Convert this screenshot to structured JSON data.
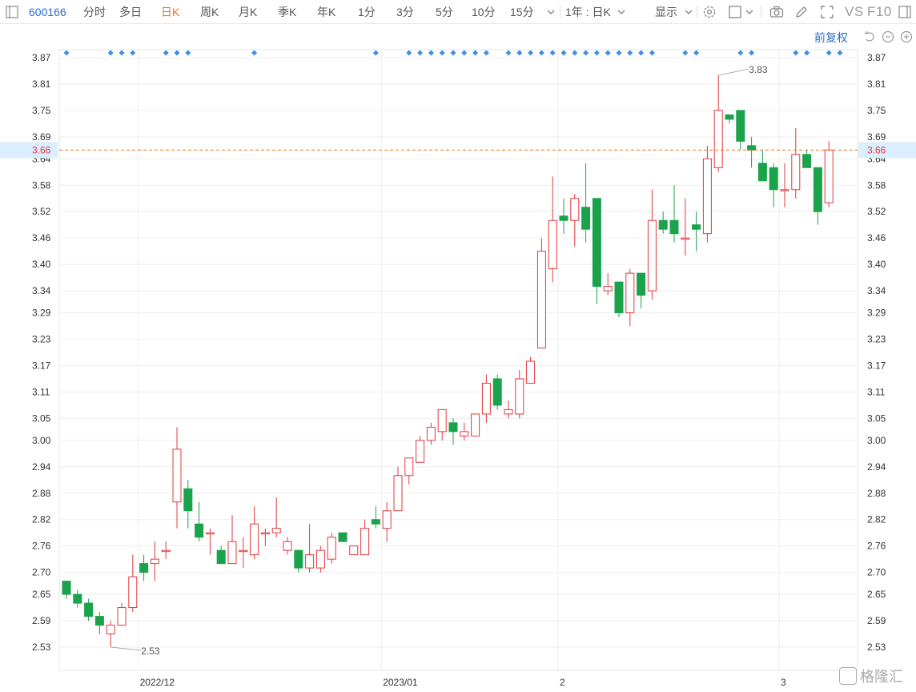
{
  "toolbar": {
    "code": "600166",
    "items": [
      "分时",
      "多日",
      "日K",
      "周K",
      "月K",
      "季K",
      "年K",
      "1分",
      "3分",
      "5分",
      "10分",
      "15分"
    ],
    "active": "日K",
    "period_select": "1年 : 日K",
    "display_label": "显示",
    "vs_label": "VS",
    "f10_label": "F10"
  },
  "subbar": {
    "adjust_label": "前复权"
  },
  "watermark": {
    "text": "格隆汇"
  },
  "colors": {
    "up": "#e0393e",
    "down": "#1aa34a",
    "marker": "#3f8fe8",
    "grid": "#eeeeee",
    "price_line": "#e8742a",
    "price_label": "#e0393e",
    "price_label_bg": "#dbeeff"
  },
  "chart_data": {
    "type": "candlestick",
    "y_ticks": [
      3.87,
      3.81,
      3.75,
      3.69,
      3.64,
      3.58,
      3.52,
      3.46,
      3.4,
      3.34,
      3.29,
      3.23,
      3.17,
      3.11,
      3.05,
      3.0,
      2.94,
      2.88,
      2.82,
      2.76,
      2.7,
      2.65,
      2.59,
      2.53
    ],
    "ylim": [
      2.53,
      3.87
    ],
    "current_price": 3.66,
    "x_labels": [
      {
        "label": "2022/12",
        "index": 7
      },
      {
        "label": "2023/01",
        "index": 29
      },
      {
        "label": "2",
        "index": 45
      },
      {
        "label": "3",
        "index": 65
      }
    ],
    "annotations": [
      {
        "text": "3.83",
        "index": 59,
        "value": 3.83
      },
      {
        "text": "2.53",
        "index": 4,
        "value": 2.53
      }
    ],
    "event_marker_indices": [
      0,
      4,
      5,
      6,
      9,
      10,
      11,
      17,
      28,
      31,
      32,
      33,
      34,
      35,
      36,
      37,
      38,
      40,
      41,
      42,
      43,
      44,
      45,
      46,
      47,
      48,
      49,
      50,
      51,
      52,
      53,
      56,
      57,
      61,
      62,
      66,
      67,
      69,
      70
    ],
    "candles": [
      {
        "o": 2.68,
        "h": 2.68,
        "l": 2.64,
        "c": 2.65
      },
      {
        "o": 2.65,
        "h": 2.66,
        "l": 2.62,
        "c": 2.63
      },
      {
        "o": 2.63,
        "h": 2.64,
        "l": 2.59,
        "c": 2.6
      },
      {
        "o": 2.6,
        "h": 2.61,
        "l": 2.56,
        "c": 2.58
      },
      {
        "o": 2.56,
        "h": 2.59,
        "l": 2.53,
        "c": 2.58
      },
      {
        "o": 2.58,
        "h": 2.63,
        "l": 2.58,
        "c": 2.62
      },
      {
        "o": 2.62,
        "h": 2.74,
        "l": 2.61,
        "c": 2.69
      },
      {
        "o": 2.72,
        "h": 2.74,
        "l": 2.68,
        "c": 2.7
      },
      {
        "o": 2.72,
        "h": 2.77,
        "l": 2.68,
        "c": 2.73
      },
      {
        "o": 2.75,
        "h": 2.77,
        "l": 2.73,
        "c": 2.75
      },
      {
        "o": 2.86,
        "h": 3.03,
        "l": 2.8,
        "c": 2.98
      },
      {
        "o": 2.89,
        "h": 2.91,
        "l": 2.8,
        "c": 2.84
      },
      {
        "o": 2.81,
        "h": 2.86,
        "l": 2.77,
        "c": 2.78
      },
      {
        "o": 2.79,
        "h": 2.8,
        "l": 2.74,
        "c": 2.79
      },
      {
        "o": 2.75,
        "h": 2.76,
        "l": 2.72,
        "c": 2.72
      },
      {
        "o": 2.72,
        "h": 2.83,
        "l": 2.72,
        "c": 2.77
      },
      {
        "o": 2.75,
        "h": 2.78,
        "l": 2.71,
        "c": 2.75
      },
      {
        "o": 2.74,
        "h": 2.85,
        "l": 2.73,
        "c": 2.81
      },
      {
        "o": 2.79,
        "h": 2.8,
        "l": 2.76,
        "c": 2.79
      },
      {
        "o": 2.79,
        "h": 2.87,
        "l": 2.78,
        "c": 2.8
      },
      {
        "o": 2.75,
        "h": 2.78,
        "l": 2.74,
        "c": 2.77
      },
      {
        "o": 2.75,
        "h": 2.75,
        "l": 2.7,
        "c": 2.71
      },
      {
        "o": 2.71,
        "h": 2.81,
        "l": 2.7,
        "c": 2.74
      },
      {
        "o": 2.71,
        "h": 2.76,
        "l": 2.7,
        "c": 2.75
      },
      {
        "o": 2.73,
        "h": 2.79,
        "l": 2.72,
        "c": 2.78
      },
      {
        "o": 2.79,
        "h": 2.79,
        "l": 2.77,
        "c": 2.77
      },
      {
        "o": 2.74,
        "h": 2.76,
        "l": 2.74,
        "c": 2.76
      },
      {
        "o": 2.74,
        "h": 2.82,
        "l": 2.74,
        "c": 2.8
      },
      {
        "o": 2.82,
        "h": 2.85,
        "l": 2.8,
        "c": 2.81
      },
      {
        "o": 2.8,
        "h": 2.86,
        "l": 2.77,
        "c": 2.84
      },
      {
        "o": 2.84,
        "h": 2.94,
        "l": 2.84,
        "c": 2.92
      },
      {
        "o": 2.92,
        "h": 2.96,
        "l": 2.9,
        "c": 2.96
      },
      {
        "o": 2.95,
        "h": 3.01,
        "l": 2.95,
        "c": 3.0
      },
      {
        "o": 3.0,
        "h": 3.04,
        "l": 2.99,
        "c": 3.03
      },
      {
        "o": 3.02,
        "h": 3.07,
        "l": 3.0,
        "c": 3.07
      },
      {
        "o": 3.04,
        "h": 3.05,
        "l": 2.99,
        "c": 3.02
      },
      {
        "o": 3.01,
        "h": 3.04,
        "l": 3.0,
        "c": 3.02
      },
      {
        "o": 3.01,
        "h": 3.06,
        "l": 3.01,
        "c": 3.06
      },
      {
        "o": 3.06,
        "h": 3.15,
        "l": 3.04,
        "c": 3.13
      },
      {
        "o": 3.14,
        "h": 3.15,
        "l": 3.07,
        "c": 3.08
      },
      {
        "o": 3.06,
        "h": 3.09,
        "l": 3.05,
        "c": 3.07
      },
      {
        "o": 3.06,
        "h": 3.16,
        "l": 3.05,
        "c": 3.14
      },
      {
        "o": 3.13,
        "h": 3.19,
        "l": 3.13,
        "c": 3.18
      },
      {
        "o": 3.21,
        "h": 3.46,
        "l": 3.21,
        "c": 3.43
      },
      {
        "o": 3.39,
        "h": 3.6,
        "l": 3.36,
        "c": 3.5
      },
      {
        "o": 3.51,
        "h": 3.55,
        "l": 3.47,
        "c": 3.5
      },
      {
        "o": 3.5,
        "h": 3.56,
        "l": 3.44,
        "c": 3.55
      },
      {
        "o": 3.53,
        "h": 3.63,
        "l": 3.45,
        "c": 3.48
      },
      {
        "o": 3.55,
        "h": 3.55,
        "l": 3.31,
        "c": 3.35
      },
      {
        "o": 3.34,
        "h": 3.38,
        "l": 3.33,
        "c": 3.35
      },
      {
        "o": 3.36,
        "h": 3.36,
        "l": 3.28,
        "c": 3.29
      },
      {
        "o": 3.29,
        "h": 3.39,
        "l": 3.26,
        "c": 3.38
      },
      {
        "o": 3.38,
        "h": 3.38,
        "l": 3.3,
        "c": 3.33
      },
      {
        "o": 3.34,
        "h": 3.57,
        "l": 3.32,
        "c": 3.5
      },
      {
        "o": 3.5,
        "h": 3.52,
        "l": 3.47,
        "c": 3.48
      },
      {
        "o": 3.5,
        "h": 3.58,
        "l": 3.45,
        "c": 3.47
      },
      {
        "o": 3.46,
        "h": 3.55,
        "l": 3.42,
        "c": 3.46
      },
      {
        "o": 3.49,
        "h": 3.52,
        "l": 3.43,
        "c": 3.48
      },
      {
        "o": 3.47,
        "h": 3.67,
        "l": 3.45,
        "c": 3.64
      },
      {
        "o": 3.62,
        "h": 3.83,
        "l": 3.61,
        "c": 3.75
      },
      {
        "o": 3.74,
        "h": 3.74,
        "l": 3.72,
        "c": 3.73
      },
      {
        "o": 3.75,
        "h": 3.75,
        "l": 3.66,
        "c": 3.68
      },
      {
        "o": 3.67,
        "h": 3.69,
        "l": 3.62,
        "c": 3.66
      },
      {
        "o": 3.63,
        "h": 3.66,
        "l": 3.59,
        "c": 3.59
      },
      {
        "o": 3.62,
        "h": 3.63,
        "l": 3.53,
        "c": 3.57
      },
      {
        "o": 3.57,
        "h": 3.63,
        "l": 3.53,
        "c": 3.57
      },
      {
        "o": 3.57,
        "h": 3.71,
        "l": 3.55,
        "c": 3.65
      },
      {
        "o": 3.65,
        "h": 3.66,
        "l": 3.62,
        "c": 3.62
      },
      {
        "o": 3.62,
        "h": 3.62,
        "l": 3.49,
        "c": 3.52
      },
      {
        "o": 3.54,
        "h": 3.68,
        "l": 3.53,
        "c": 3.66
      }
    ]
  }
}
